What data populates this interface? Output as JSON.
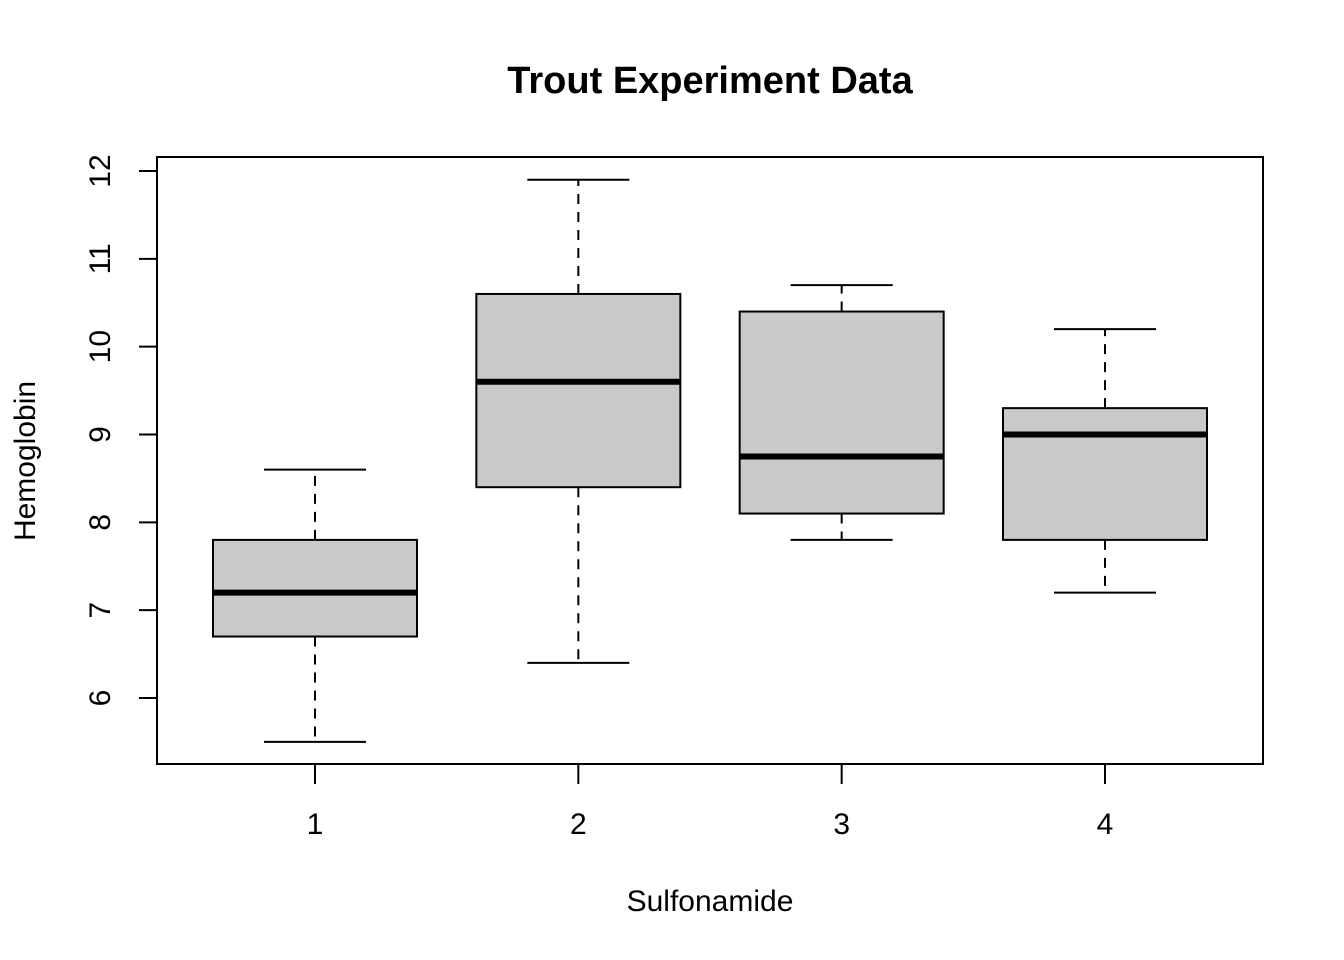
{
  "chart_data": {
    "type": "boxplot",
    "title": "Trout Experiment Data",
    "xlabel": "Sulfonamide",
    "ylabel": "Hemoglobin",
    "ylim": [
      5.25,
      12.15
    ],
    "y_ticks": [
      6,
      7,
      8,
      9,
      10,
      11,
      12
    ],
    "categories": [
      "1",
      "2",
      "3",
      "4"
    ],
    "boxes": [
      {
        "category": "1",
        "whisker_low": 5.5,
        "q1": 6.7,
        "median": 7.2,
        "q3": 7.8,
        "whisker_high": 8.6
      },
      {
        "category": "2",
        "whisker_low": 6.4,
        "q1": 8.4,
        "median": 9.6,
        "q3": 10.6,
        "whisker_high": 11.9
      },
      {
        "category": "3",
        "whisker_low": 7.8,
        "q1": 8.1,
        "median": 8.75,
        "q3": 10.4,
        "whisker_high": 10.7
      },
      {
        "category": "4",
        "whisker_low": 7.2,
        "q1": 7.8,
        "median": 9.0,
        "q3": 9.3,
        "whisker_high": 10.2
      }
    ],
    "legend": "none",
    "grid": false,
    "colors": {
      "box_fill": "#c9c9c9",
      "line": "#000000",
      "background": "#ffffff"
    }
  }
}
